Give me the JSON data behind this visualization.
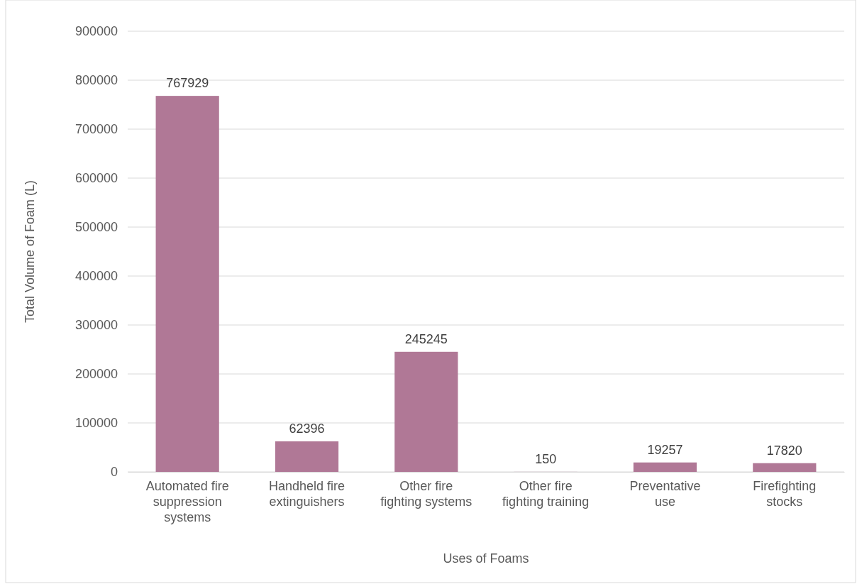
{
  "chart_data": {
    "type": "bar",
    "xlabel": "Uses of Foams",
    "ylabel": "Total Volume of Foam (L)",
    "categories": [
      "Automated fire suppression systems",
      "Handheld fire extinguishers",
      "Other fire fighting systems",
      "Other fire fighting training",
      "Preventative use",
      "Firefighting stocks"
    ],
    "values": [
      767929,
      62396,
      245245,
      150,
      19257,
      17820
    ],
    "color": "#b07896",
    "ylim": [
      0,
      900000
    ],
    "yticks": [
      0,
      100000,
      200000,
      300000,
      400000,
      500000,
      600000,
      700000,
      800000,
      900000
    ],
    "grid": "y",
    "data_labels": true
  }
}
